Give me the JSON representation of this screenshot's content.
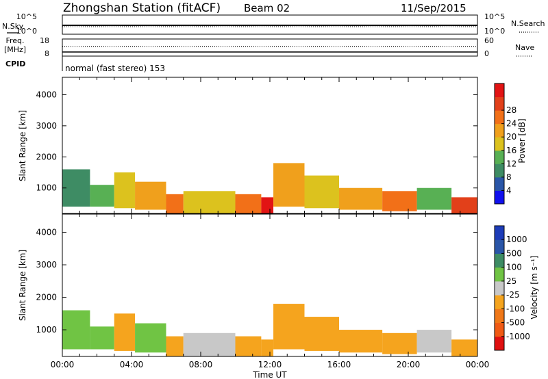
{
  "header": {
    "station": "Zhongshan Station (fitACF)",
    "beam": "Beam 02",
    "date": "11/Sep/2015"
  },
  "panels": {
    "nsky_label": "N.Sky",
    "nsky_ticks": [
      "10^5",
      "10^0"
    ],
    "nsearch_label": "N.Search",
    "nsearch_ticks": [
      "10^5",
      "10^0"
    ],
    "freq_label_line1": "Freq.",
    "freq_label_line2": "[MHz]",
    "freq_ticks": [
      "18",
      "8"
    ],
    "nave_label": "Nave",
    "nave_ticks": [
      "60",
      "0"
    ],
    "cpid_label": "CPID",
    "cpid_text": "normal (fast stereo) 153"
  },
  "x_ticks": [
    "00:00",
    "04:00",
    "08:00",
    "12:00",
    "16:00",
    "20:00",
    "00:00"
  ],
  "colors": {
    "power_scale": [
      "#1010ee",
      "#2a56a8",
      "#3e8c64",
      "#58b054",
      "#dcc21e",
      "#f0a01c",
      "#f27018",
      "#e2401a",
      "#e21414"
    ],
    "velocity_scale": [
      "#e01010",
      "#f05a14",
      "#f07818",
      "#f5a41e",
      "#c8c8c8",
      "#70c444",
      "#3e8c64",
      "#2a56a8",
      "#1d3cb8"
    ]
  },
  "chart_data": [
    {
      "type": "heatmap",
      "title": "",
      "xlabel": "Time UT",
      "ylabel": "Slant Range [km]",
      "x_ticks": [
        "00:00",
        "04:00",
        "08:00",
        "12:00",
        "16:00",
        "20:00",
        "00:00"
      ],
      "xlim_hours": [
        0,
        24
      ],
      "y_ticks": [
        1000,
        2000,
        3000,
        4000
      ],
      "ylim": [
        180,
        4560
      ],
      "colorbar": {
        "label": "Power [dB]",
        "ticks": [
          "4",
          "8",
          "12",
          "16",
          "20",
          "24",
          "28"
        ],
        "range": [
          0,
          30
        ]
      },
      "echo_bands": [
        {
          "t_start": 0.0,
          "t_end": 1.6,
          "r_min": 400,
          "r_max": 1600,
          "value": 9
        },
        {
          "t_start": 1.6,
          "t_end": 3.0,
          "r_min": 400,
          "r_max": 1100,
          "value": 13
        },
        {
          "t_start": 3.0,
          "t_end": 4.2,
          "r_min": 350,
          "r_max": 1500,
          "value": 15
        },
        {
          "t_start": 4.2,
          "t_end": 6.0,
          "r_min": 300,
          "r_max": 1200,
          "value": 18
        },
        {
          "t_start": 6.0,
          "t_end": 7.0,
          "r_min": 180,
          "r_max": 800,
          "value": 22
        },
        {
          "t_start": 7.0,
          "t_end": 10.0,
          "r_min": 180,
          "r_max": 900,
          "value": 16
        },
        {
          "t_start": 10.0,
          "t_end": 11.5,
          "r_min": 180,
          "r_max": 800,
          "value": 20
        },
        {
          "t_start": 11.5,
          "t_end": 12.2,
          "r_min": 180,
          "r_max": 700,
          "value": 28
        },
        {
          "t_start": 12.2,
          "t_end": 14.0,
          "r_min": 400,
          "r_max": 1800,
          "value": 17
        },
        {
          "t_start": 14.0,
          "t_end": 16.0,
          "r_min": 350,
          "r_max": 1400,
          "value": 14
        },
        {
          "t_start": 16.0,
          "t_end": 18.5,
          "r_min": 300,
          "r_max": 1000,
          "value": 19
        },
        {
          "t_start": 18.5,
          "t_end": 20.5,
          "r_min": 250,
          "r_max": 900,
          "value": 21
        },
        {
          "t_start": 20.5,
          "t_end": 22.5,
          "r_min": 300,
          "r_max": 1000,
          "value": 12
        },
        {
          "t_start": 22.5,
          "t_end": 24.0,
          "r_min": 180,
          "r_max": 700,
          "value": 25
        }
      ]
    },
    {
      "type": "heatmap",
      "title": "",
      "xlabel": "Time UT",
      "ylabel": "Slant Range [km]",
      "x_ticks": [
        "00:00",
        "04:00",
        "08:00",
        "12:00",
        "16:00",
        "20:00",
        "00:00"
      ],
      "xlim_hours": [
        0,
        24
      ],
      "y_ticks": [
        1000,
        2000,
        3000,
        4000
      ],
      "ylim": [
        180,
        4560
      ],
      "colorbar": {
        "label": "Velocity [m s⁻¹]",
        "ticks": [
          "-1000",
          "-500",
          "-100",
          "-25",
          "25",
          "100",
          "500",
          "1000"
        ],
        "range": [
          -1250,
          1250
        ]
      },
      "echo_bands": [
        {
          "t_start": 0.0,
          "t_end": 1.6,
          "r_min": 400,
          "r_max": 1600,
          "value": 300
        },
        {
          "t_start": 1.6,
          "t_end": 3.0,
          "r_min": 400,
          "r_max": 1100,
          "value": 150
        },
        {
          "t_start": 3.0,
          "t_end": 4.2,
          "r_min": 350,
          "r_max": 1500,
          "value": -200
        },
        {
          "t_start": 4.2,
          "t_end": 6.0,
          "r_min": 300,
          "r_max": 1200,
          "value": 200
        },
        {
          "t_start": 6.0,
          "t_end": 7.0,
          "r_min": 180,
          "r_max": 800,
          "value": -300
        },
        {
          "t_start": 7.0,
          "t_end": 10.0,
          "r_min": 180,
          "r_max": 900,
          "value": 0
        },
        {
          "t_start": 10.0,
          "t_end": 11.5,
          "r_min": 180,
          "r_max": 800,
          "value": -300
        },
        {
          "t_start": 11.5,
          "t_end": 12.2,
          "r_min": 180,
          "r_max": 700,
          "value": -300
        },
        {
          "t_start": 12.2,
          "t_end": 14.0,
          "r_min": 400,
          "r_max": 1800,
          "value": -300
        },
        {
          "t_start": 14.0,
          "t_end": 16.0,
          "r_min": 350,
          "r_max": 1400,
          "value": -200
        },
        {
          "t_start": 16.0,
          "t_end": 18.5,
          "r_min": 300,
          "r_max": 1000,
          "value": -300
        },
        {
          "t_start": 18.5,
          "t_end": 20.5,
          "r_min": 250,
          "r_max": 900,
          "value": -300
        },
        {
          "t_start": 20.5,
          "t_end": 22.5,
          "r_min": 300,
          "r_max": 1000,
          "value": 60
        },
        {
          "t_start": 22.5,
          "t_end": 24.0,
          "r_min": 180,
          "r_max": 700,
          "value": -300
        }
      ]
    }
  ]
}
